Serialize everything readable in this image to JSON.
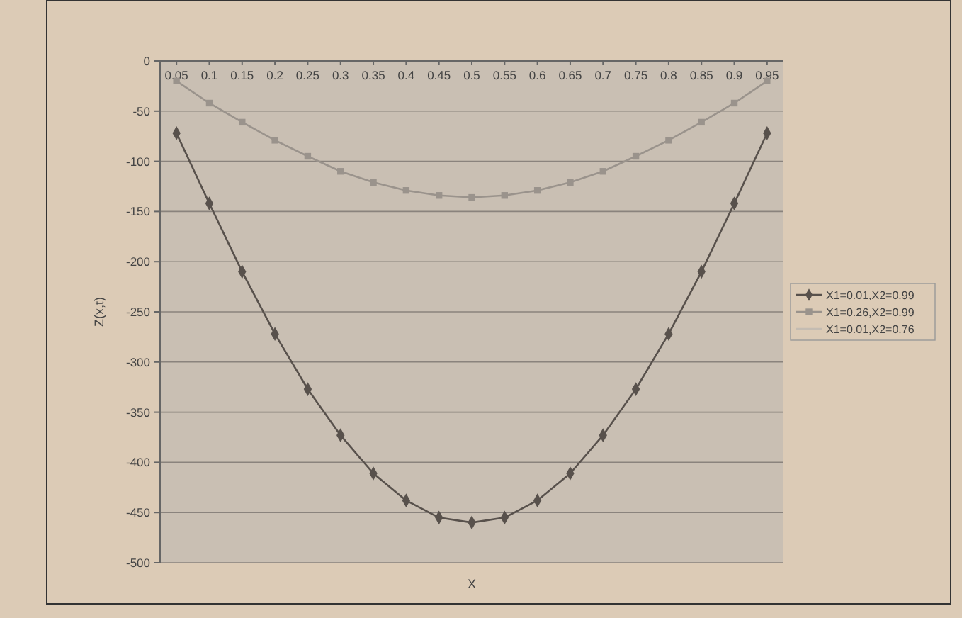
{
  "chart_data": {
    "type": "line",
    "xlabel": "X",
    "ylabel": "Z(x,t)",
    "categories": [
      "0.05",
      "0.1",
      "0.15",
      "0.2",
      "0.25",
      "0.3",
      "0.35",
      "0.4",
      "0.45",
      "0.5",
      "0.55",
      "0.6",
      "0.65",
      "0.7",
      "0.75",
      "0.8",
      "0.85",
      "0.9",
      "0.95"
    ],
    "series": [
      {
        "name": "X1=0.01,X2=0.99",
        "color": "#58514c",
        "marker": "diamond",
        "values": [
          -72,
          -142,
          -210,
          -272,
          -327,
          -373,
          -411,
          -438,
          -455,
          -460,
          -455,
          -438,
          -411,
          -373,
          -327,
          -272,
          -210,
          -142,
          -72
        ]
      },
      {
        "name": "X1=0.26,X2=0.99",
        "color": "#9a938c",
        "marker": "square",
        "values": [
          -20,
          -42,
          -61,
          -79,
          -95,
          -110,
          -121,
          -129,
          -134,
          -136,
          -134,
          -129,
          -121,
          -110,
          -95,
          -79,
          -61,
          -42,
          -20
        ]
      },
      {
        "name": "X1=0.01,X2=0.76",
        "color": "#c4bcb2",
        "marker": "none",
        "values": [
          null,
          null,
          null,
          null,
          null,
          null,
          null,
          null,
          null,
          null,
          null,
          null,
          null,
          null,
          null,
          null,
          null,
          null,
          null
        ]
      }
    ],
    "ylim": [
      -500,
      0
    ],
    "yticks": [
      -500,
      -450,
      -400,
      -350,
      -300,
      -250,
      -200,
      -150,
      -100,
      -50,
      0
    ],
    "grid": "y",
    "legend": "right"
  }
}
